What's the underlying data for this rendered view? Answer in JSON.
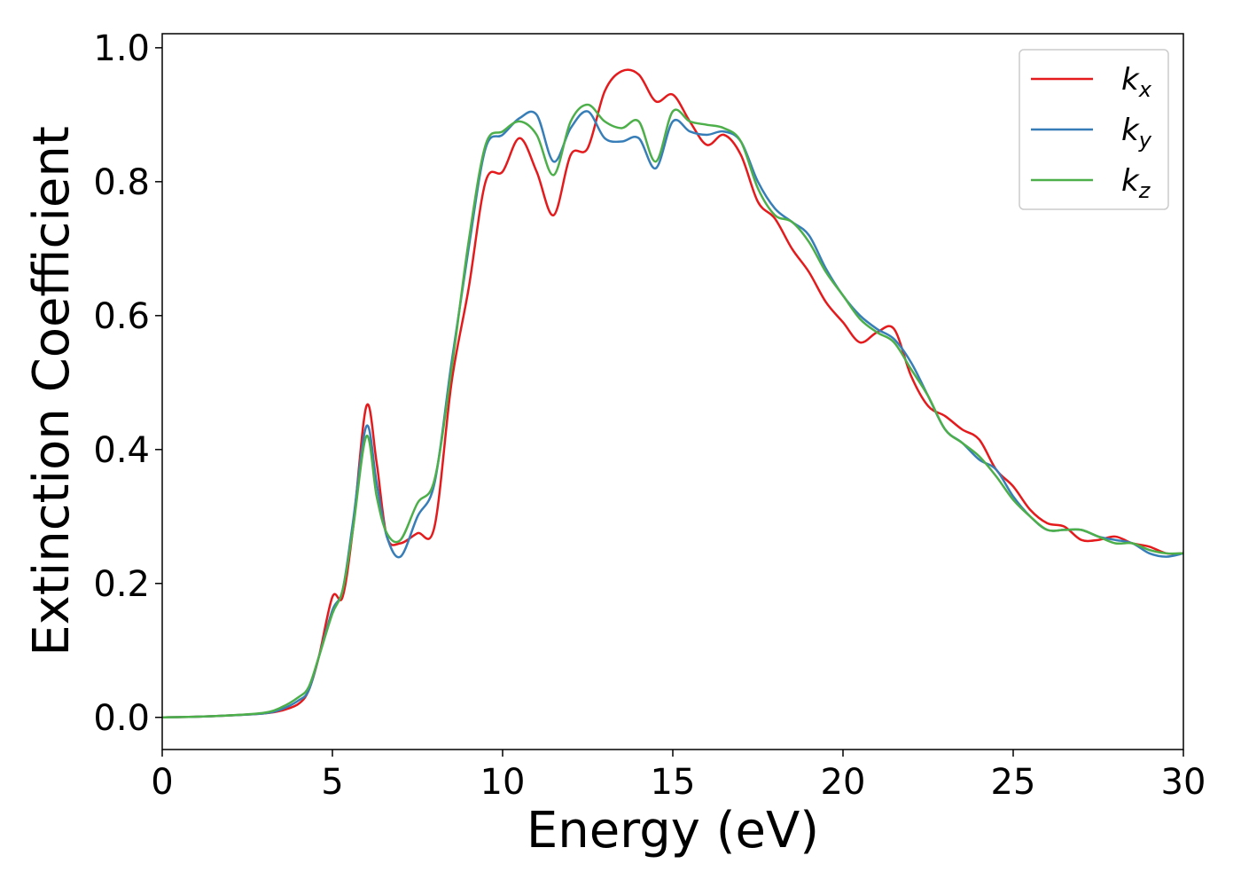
{
  "chart_data": {
    "type": "line",
    "xlabel": "Energy (eV)",
    "ylabel": "Extinction Coefficient",
    "x": [
      0,
      1,
      2,
      3,
      3.5,
      4,
      4.3,
      4.6,
      5,
      5.3,
      5.6,
      6,
      6.3,
      6.6,
      7,
      7.5,
      8,
      8.5,
      9,
      9.5,
      10,
      10.5,
      11,
      11.5,
      12,
      12.5,
      13,
      13.5,
      14,
      14.5,
      15,
      15.5,
      16,
      16.5,
      17,
      17.5,
      18,
      18.5,
      19,
      19.5,
      20,
      20.5,
      21,
      21.5,
      22,
      22.5,
      23,
      23.5,
      24,
      24.5,
      25,
      25.5,
      26,
      26.5,
      27,
      27.5,
      28,
      28.5,
      29,
      29.5,
      30
    ],
    "series": [
      {
        "name": "kx",
        "color": "#e41a1c",
        "values": [
          0,
          0.001,
          0.003,
          0.006,
          0.01,
          0.02,
          0.04,
          0.09,
          0.18,
          0.18,
          0.28,
          0.465,
          0.38,
          0.27,
          0.26,
          0.275,
          0.285,
          0.5,
          0.64,
          0.8,
          0.815,
          0.865,
          0.815,
          0.75,
          0.84,
          0.85,
          0.935,
          0.965,
          0.96,
          0.92,
          0.93,
          0.89,
          0.855,
          0.87,
          0.84,
          0.77,
          0.745,
          0.7,
          0.665,
          0.62,
          0.59,
          0.56,
          0.575,
          0.58,
          0.51,
          0.465,
          0.45,
          0.43,
          0.415,
          0.37,
          0.345,
          0.31,
          0.29,
          0.285,
          0.265,
          0.265,
          0.27,
          0.26,
          0.255,
          0.245,
          0.245
        ]
      },
      {
        "name": "ky",
        "color": "#377eb8",
        "values": [
          0,
          0.001,
          0.003,
          0.006,
          0.012,
          0.025,
          0.04,
          0.09,
          0.16,
          0.19,
          0.29,
          0.435,
          0.35,
          0.27,
          0.24,
          0.3,
          0.35,
          0.53,
          0.7,
          0.85,
          0.87,
          0.895,
          0.9,
          0.83,
          0.88,
          0.905,
          0.865,
          0.86,
          0.865,
          0.82,
          0.89,
          0.875,
          0.87,
          0.875,
          0.86,
          0.8,
          0.76,
          0.74,
          0.72,
          0.67,
          0.63,
          0.6,
          0.58,
          0.565,
          0.53,
          0.48,
          0.43,
          0.41,
          0.385,
          0.37,
          0.33,
          0.3,
          0.28,
          0.28,
          0.28,
          0.27,
          0.265,
          0.26,
          0.245,
          0.24,
          0.245
        ]
      },
      {
        "name": "kz",
        "color": "#4daf4a",
        "values": [
          0,
          0.001,
          0.003,
          0.007,
          0.015,
          0.03,
          0.045,
          0.09,
          0.155,
          0.19,
          0.28,
          0.42,
          0.33,
          0.275,
          0.265,
          0.32,
          0.355,
          0.52,
          0.71,
          0.855,
          0.875,
          0.89,
          0.87,
          0.81,
          0.89,
          0.915,
          0.89,
          0.88,
          0.89,
          0.83,
          0.905,
          0.89,
          0.885,
          0.88,
          0.86,
          0.79,
          0.75,
          0.74,
          0.71,
          0.665,
          0.63,
          0.595,
          0.575,
          0.56,
          0.52,
          0.48,
          0.43,
          0.41,
          0.39,
          0.36,
          0.325,
          0.3,
          0.28,
          0.28,
          0.28,
          0.27,
          0.26,
          0.26,
          0.25,
          0.245,
          0.245
        ]
      }
    ],
    "xlim": [
      0,
      30
    ],
    "xticks": [
      0,
      5,
      10,
      15,
      20,
      25,
      30
    ],
    "ylim": [
      -0.048,
      1.021
    ],
    "yticks": [
      {
        "value": 0,
        "label": "0.0"
      },
      {
        "value": 0.2,
        "label": "0.2"
      },
      {
        "value": 0.4,
        "label": "0.4"
      },
      {
        "value": 0.6,
        "label": "0.6"
      },
      {
        "value": 0.8,
        "label": "0.8"
      },
      {
        "value": 1,
        "label": "1.0"
      }
    ],
    "legend": "upper right"
  }
}
